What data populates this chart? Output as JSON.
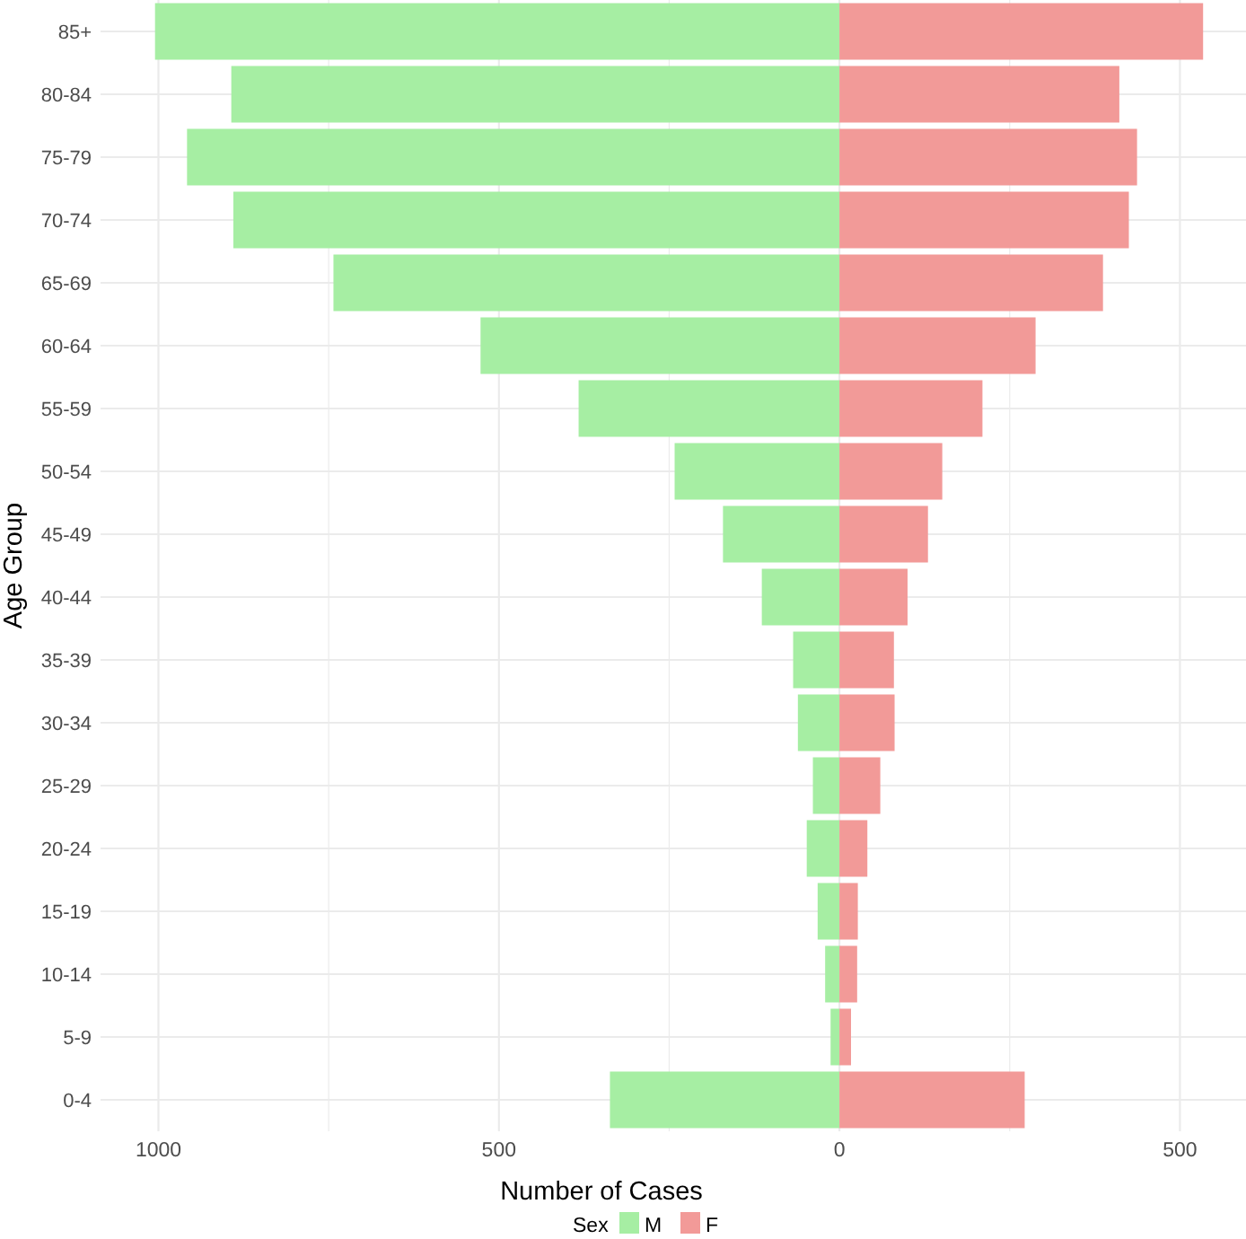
{
  "chart_data": {
    "type": "bar",
    "orientation": "horizontal",
    "stacked": true,
    "xlabel": "Number of Cases",
    "ylabel": "Age Group",
    "legend_title": "Sex",
    "legend": "bottom",
    "grid": true,
    "categories": [
      "85+",
      "80-84",
      "75-79",
      "70-74",
      "65-69",
      "60-64",
      "55-59",
      "50-54",
      "45-49",
      "40-44",
      "35-39",
      "30-34",
      "25-29",
      "20-24",
      "15-19",
      "10-14",
      "5-9",
      "0-4"
    ],
    "series": [
      {
        "name": "M",
        "color": "#a6eea3",
        "values": [
          -1005,
          -893,
          -958,
          -890,
          -743,
          -527,
          -383,
          -242,
          -171,
          -114,
          -68,
          -61,
          -39,
          -48,
          -32,
          -21,
          -13,
          -337
        ]
      },
      {
        "name": "F",
        "color": "#f29a98",
        "values": [
          534,
          411,
          437,
          425,
          387,
          288,
          210,
          151,
          130,
          100,
          80,
          81,
          60,
          41,
          27,
          26,
          17,
          272
        ]
      }
    ],
    "xlim": [
      -1085,
      597
    ],
    "xticks": [
      {
        "value": -1000,
        "label": "1000"
      },
      {
        "value": -750,
        "label": null
      },
      {
        "value": -500,
        "label": "500"
      },
      {
        "value": -250,
        "label": null
      },
      0,
      {
        "value": 250,
        "label": null
      },
      {
        "value": 500,
        "label": "500"
      }
    ]
  }
}
